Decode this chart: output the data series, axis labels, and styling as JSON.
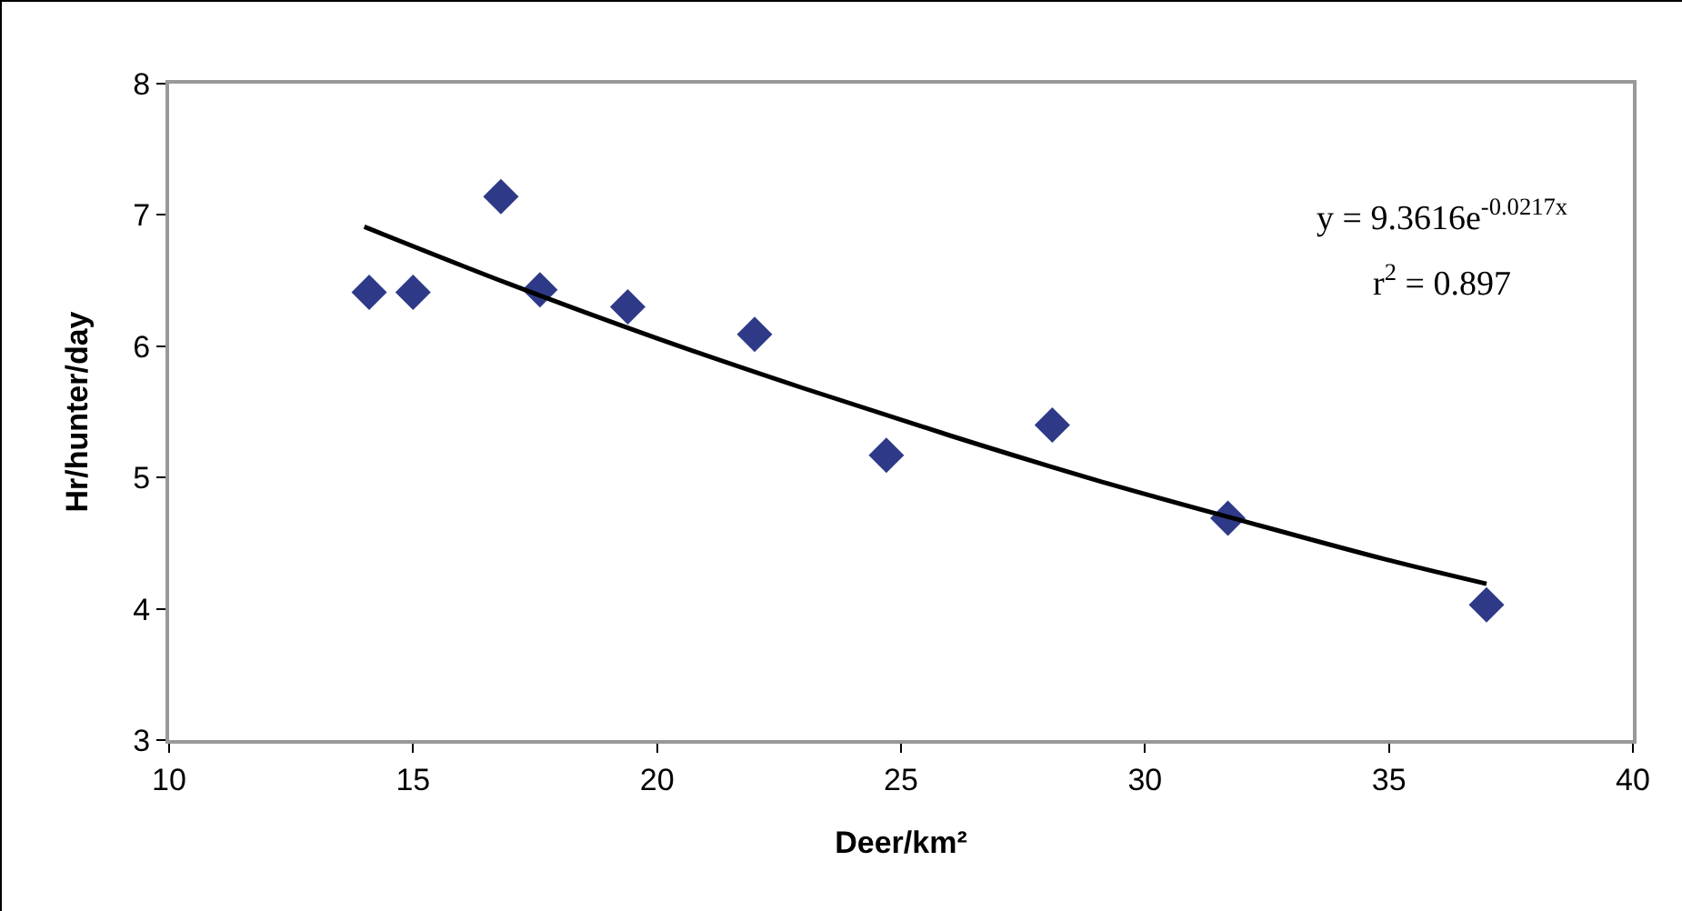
{
  "chart_data": {
    "type": "scatter",
    "xlabel": "Deer/km²",
    "ylabel": "Hr/hunter/day",
    "xlim": [
      10,
      40
    ],
    "xticks": [
      10,
      15,
      20,
      25,
      30,
      35,
      40
    ],
    "ylim": [
      3,
      8
    ],
    "yticks": [
      3,
      4,
      5,
      6,
      7,
      8
    ],
    "grid": false,
    "marker": "diamond",
    "series": [
      {
        "color": "#2e3a87",
        "x": [
          14.1,
          15.0,
          16.8,
          17.6,
          19.4,
          22.0,
          24.7,
          28.1,
          31.7,
          37.0
        ],
        "values": [
          6.41,
          6.41,
          7.14,
          6.43,
          6.3,
          6.09,
          5.17,
          5.4,
          4.69,
          4.03
        ]
      },
      {
        "type": "line",
        "marker": "none",
        "color": "#000000",
        "x": [
          14,
          17,
          20,
          23,
          26,
          29,
          32,
          35,
          37
        ],
        "values": [
          6.91,
          6.47,
          6.06,
          5.68,
          5.32,
          4.98,
          4.67,
          4.37,
          4.19
        ]
      }
    ],
    "annotations": [
      "y = 9.3616e$^{-0.0217x}$",
      "r$^{2}$ = 0.897"
    ]
  }
}
